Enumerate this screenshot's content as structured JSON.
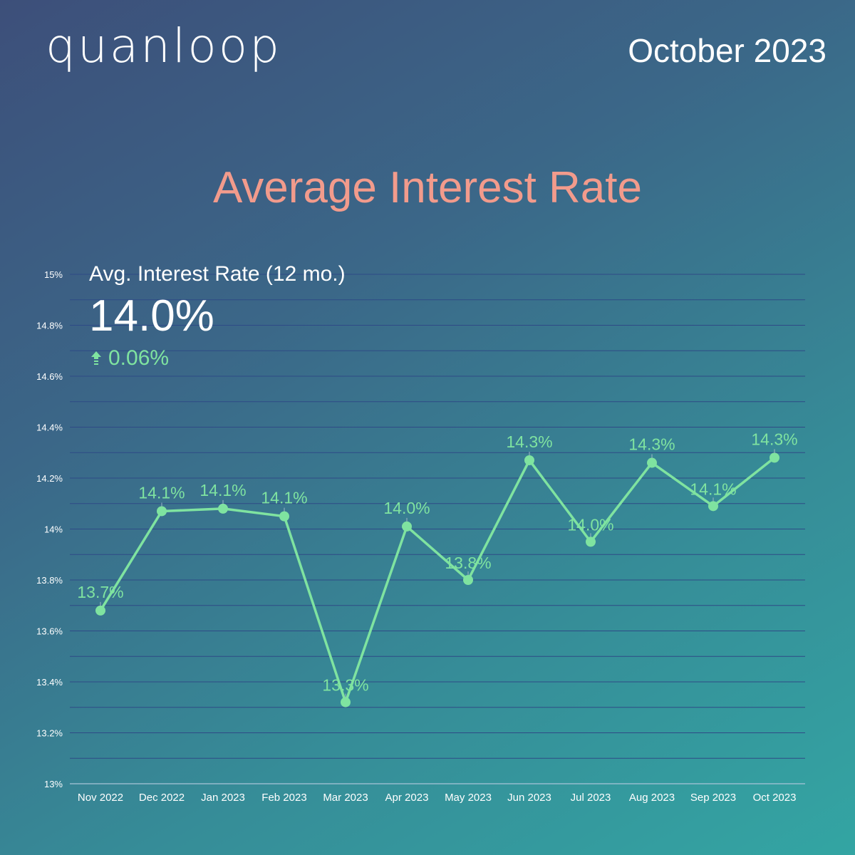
{
  "header": {
    "logo_text": "quanloop",
    "period": "October 2023"
  },
  "title": "Average Interest Rate",
  "kpi": {
    "label": "Avg. Interest Rate (12 mo.)",
    "value": "14.0%",
    "delta": "0.06%",
    "delta_icon": "arrow-up-icon",
    "delta_color": "#7fe3a0"
  },
  "colors": {
    "line": "#7fe3a0",
    "title": "#f29b8c",
    "grid": "#2e4a86"
  },
  "chart_data": {
    "type": "line",
    "title": "",
    "xlabel": "",
    "ylabel": "",
    "ylim": [
      13,
      15
    ],
    "grid": true,
    "yticks": [
      13,
      13.2,
      13.4,
      13.6,
      13.8,
      14,
      14.2,
      14.4,
      14.6,
      14.8,
      15
    ],
    "ytick_labels": [
      "13%",
      "13.2%",
      "13.4%",
      "13.6%",
      "13.8%",
      "14%",
      "14.2%",
      "14.4%",
      "14.6%",
      "14.8%",
      "15%"
    ],
    "categories": [
      "Nov 2022",
      "Dec 2022",
      "Jan 2023",
      "Feb 2023",
      "Mar 2023",
      "Apr 2023",
      "May 2023",
      "Jun 2023",
      "Jul 2023",
      "Aug 2023",
      "Sep 2023",
      "Oct 2023"
    ],
    "series": [
      {
        "values": [
          13.68,
          14.07,
          14.08,
          14.05,
          13.32,
          14.01,
          13.8,
          14.27,
          13.95,
          14.26,
          14.09,
          14.28
        ],
        "data_labels": [
          "13.7%",
          "14.1%",
          "14.1%",
          "14.1%",
          "13.3%",
          "14.0%",
          "13.8%",
          "14.3%",
          "14.0%",
          "14.3%",
          "14.1%",
          "14.3%"
        ]
      }
    ]
  }
}
